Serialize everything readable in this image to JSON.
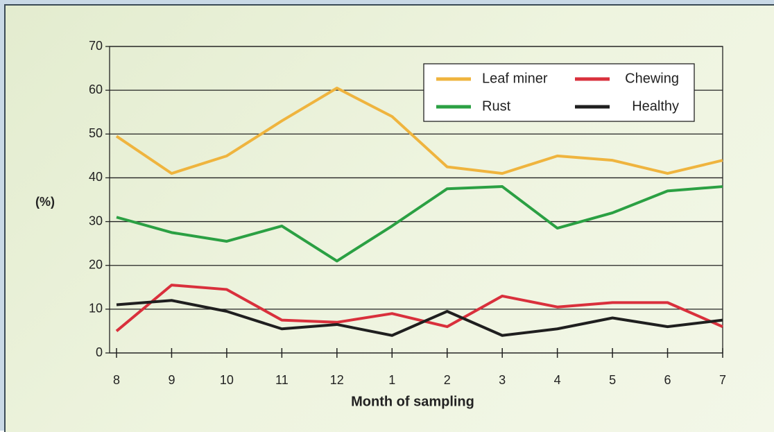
{
  "chart_data": {
    "type": "line",
    "x_label": "Month of sampling",
    "y_label": "(%)",
    "categories": [
      "8",
      "9",
      "10",
      "11",
      "12",
      "1",
      "2",
      "3",
      "4",
      "5",
      "6",
      "7"
    ],
    "series": [
      {
        "name": "Leaf miner",
        "color": "#efb43e",
        "values": [
          49.5,
          41,
          45,
          53,
          60.5,
          54,
          42.5,
          41,
          45,
          44,
          41,
          44
        ]
      },
      {
        "name": "Chewing",
        "color": "#d9303c",
        "values": [
          5,
          15.5,
          14.5,
          7.5,
          7,
          9,
          6,
          13,
          10.5,
          11.5,
          11.5,
          6
        ]
      },
      {
        "name": "Rust",
        "color": "#2ba043",
        "values": [
          31,
          27.5,
          25.5,
          29,
          21,
          29,
          37.5,
          38,
          28.5,
          32,
          37,
          38
        ]
      },
      {
        "name": "Healthy",
        "color": "#1f1f1f",
        "values": [
          11,
          12,
          9.5,
          5.5,
          6.5,
          4,
          9.5,
          4,
          5.5,
          8,
          6,
          7.5
        ]
      }
    ],
    "ylim": [
      0,
      70
    ],
    "yticks": [
      0,
      10,
      20,
      30,
      40,
      50,
      60,
      70
    ],
    "grid": true,
    "legend": "top-right"
  }
}
